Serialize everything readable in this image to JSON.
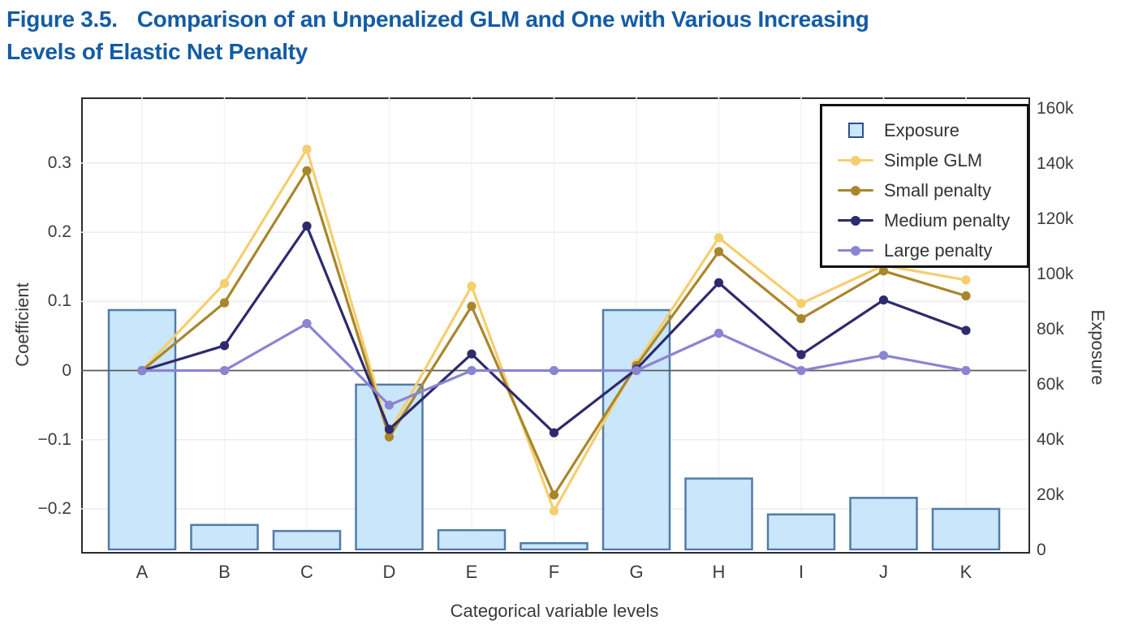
{
  "title": {
    "figure_label": "Figure 3.5.",
    "line1": "Comparison of an Unpenalized GLM and One with Various Increasing",
    "line2": "Levels of Elastic Net Penalty",
    "color": "#135CA4"
  },
  "chart_data": {
    "type": "combo-bar-line",
    "categories": [
      "A",
      "B",
      "C",
      "D",
      "E",
      "F",
      "G",
      "H",
      "I",
      "J",
      "K"
    ],
    "bar_series": {
      "name": "Exposure",
      "axis": "right",
      "values": [
        87000,
        9200,
        7000,
        60000,
        7300,
        2600,
        87000,
        26000,
        13000,
        19000,
        15000
      ],
      "fill": "#C9E6FA",
      "stroke": "#527BA8"
    },
    "line_series": [
      {
        "name": "Simple GLM",
        "color": "#F5CE6E",
        "values": [
          0,
          0.126,
          0.32,
          -0.09,
          0.122,
          -0.203,
          0.01,
          0.192,
          0.097,
          0.152,
          0.131
        ]
      },
      {
        "name": "Small penalty",
        "color": "#A9862B",
        "values": [
          0,
          0.098,
          0.289,
          -0.096,
          0.093,
          -0.18,
          0.007,
          0.172,
          0.075,
          0.144,
          0.108
        ]
      },
      {
        "name": "Medium penalty",
        "color": "#2E2A6E",
        "values": [
          0,
          0.036,
          0.209,
          -0.085,
          0.024,
          -0.09,
          0.002,
          0.127,
          0.023,
          0.102,
          0.058
        ]
      },
      {
        "name": "Large penalty",
        "color": "#8A84D3",
        "values": [
          0,
          0.0,
          0.068,
          -0.05,
          0.0,
          0.0,
          0.0,
          0.054,
          0.0,
          0.022,
          0.0
        ]
      }
    ],
    "left_axis": {
      "label": "Coefficient",
      "range": [
        -0.26,
        0.395
      ],
      "ticks": [
        {
          "label": "0.3",
          "value": 0.3
        },
        {
          "label": "0.2",
          "value": 0.2
        },
        {
          "label": "0.1",
          "value": 0.1
        },
        {
          "label": "0",
          "value": 0
        },
        {
          "label": "−0.1",
          "value": -0.1
        },
        {
          "label": "−0.2",
          "value": -0.2
        }
      ]
    },
    "right_axis": {
      "label": "Exposure",
      "range": [
        0,
        164000
      ],
      "ticks": [
        {
          "label": "160k",
          "value": 160000
        },
        {
          "label": "140k",
          "value": 140000
        },
        {
          "label": "120k",
          "value": 120000
        },
        {
          "label": "100k",
          "value": 100000
        },
        {
          "label": "80k",
          "value": 80000
        },
        {
          "label": "60k",
          "value": 60000
        },
        {
          "label": "40k",
          "value": 40000
        },
        {
          "label": "20k",
          "value": 20000
        },
        {
          "label": "0",
          "value": 0
        }
      ]
    },
    "xlabel": "Categorical variable levels",
    "legend": {
      "position": "top-right",
      "entries": [
        "Exposure",
        "Simple GLM",
        "Small penalty",
        "Medium penalty",
        "Large penalty"
      ]
    },
    "grid": {
      "horizontal": true,
      "vertical": true,
      "color": "#ececec",
      "vertical_color": "#f4f4f4"
    },
    "zero_line_color": "#5a5a5a",
    "plot_border_color": "#2b2b2b"
  }
}
